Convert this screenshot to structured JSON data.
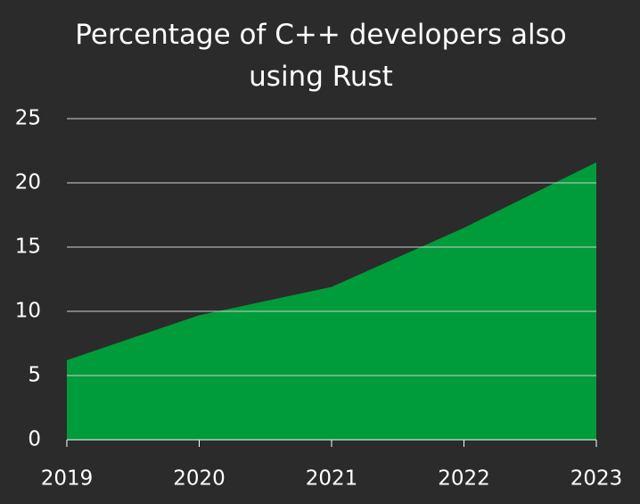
{
  "chart_data": {
    "type": "area",
    "title": "Percentage of C++ developers also using Rust",
    "x": [
      2019,
      2020,
      2021,
      2022,
      2023
    ],
    "values": [
      6.2,
      9.7,
      11.9,
      16.5,
      21.6
    ],
    "color": "#009b3a",
    "xlim": [
      2019,
      2023
    ],
    "xticks": [
      2019,
      2020,
      2021,
      2022,
      2023
    ],
    "ylim": [
      0,
      25
    ],
    "yticks": [
      0,
      5,
      10,
      15,
      20,
      25
    ],
    "grid": true
  }
}
